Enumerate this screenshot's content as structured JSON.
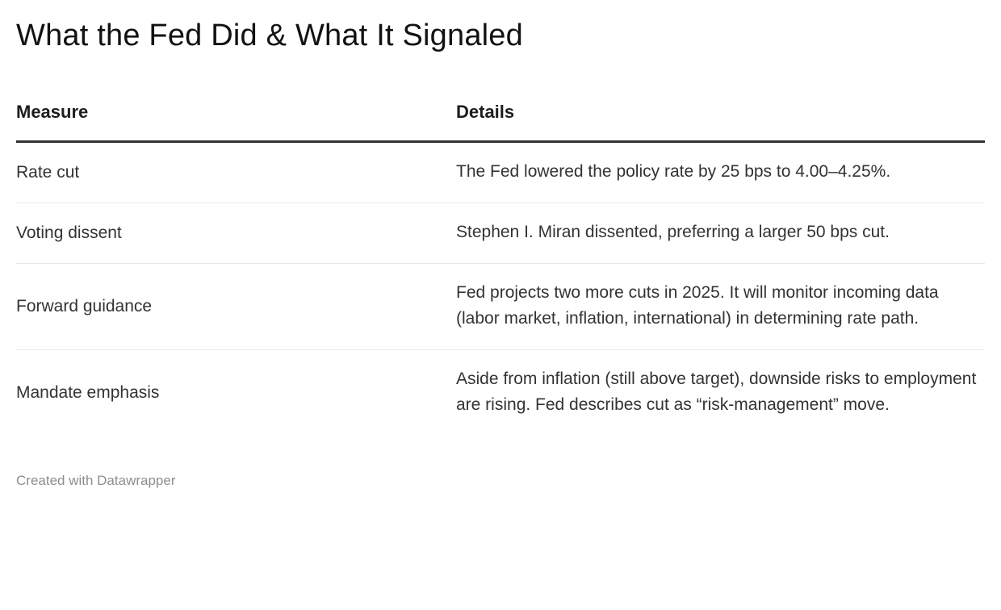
{
  "chart_data": {
    "type": "table",
    "title": "What the Fed Did & What It Signaled",
    "columns": [
      "Measure",
      "Details"
    ],
    "rows": [
      [
        "Rate cut",
        "The Fed lowered the policy rate by 25 bps to 4.00–4.25%."
      ],
      [
        "Voting dissent",
        "Stephen I. Miran dissented, preferring a larger 50 bps cut."
      ],
      [
        "Forward guidance",
        "Fed projects two more cuts in 2025. It will monitor incoming data (labor market, inflation, international) in determining rate path."
      ],
      [
        "Mandate emphasis",
        "Aside from inflation (still above target), downside risks to employment are rising. Fed describes cut as “risk-management” move."
      ]
    ],
    "layout_hints": {
      "header_rule_color": "#333333",
      "row_divider_color": "#e8e8e8",
      "text_color": "#333333",
      "title_color": "#121212",
      "grid": "horizontal-dividers-only"
    }
  },
  "footer": {
    "attribution": "Created with Datawrapper"
  }
}
